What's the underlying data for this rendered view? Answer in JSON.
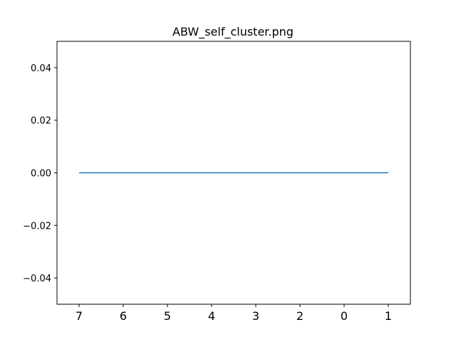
{
  "chart_data": {
    "type": "line",
    "title": "ABW_self_cluster.png",
    "xlabel": "",
    "ylabel": "",
    "categories": [
      "7",
      "6",
      "5",
      "4",
      "3",
      "2",
      "0",
      "1"
    ],
    "series": [
      {
        "values": [
          0,
          0,
          0,
          0,
          0,
          0,
          0,
          0
        ],
        "color": "#1f77b4"
      }
    ],
    "ylim": [
      -0.05,
      0.05
    ],
    "yticks": [
      -0.04,
      -0.02,
      0.0,
      0.02,
      0.04
    ],
    "ytick_labels": [
      "−0.04",
      "−0.02",
      "0.00",
      "0.02",
      "0.04"
    ],
    "grid": false,
    "legend": "none"
  }
}
